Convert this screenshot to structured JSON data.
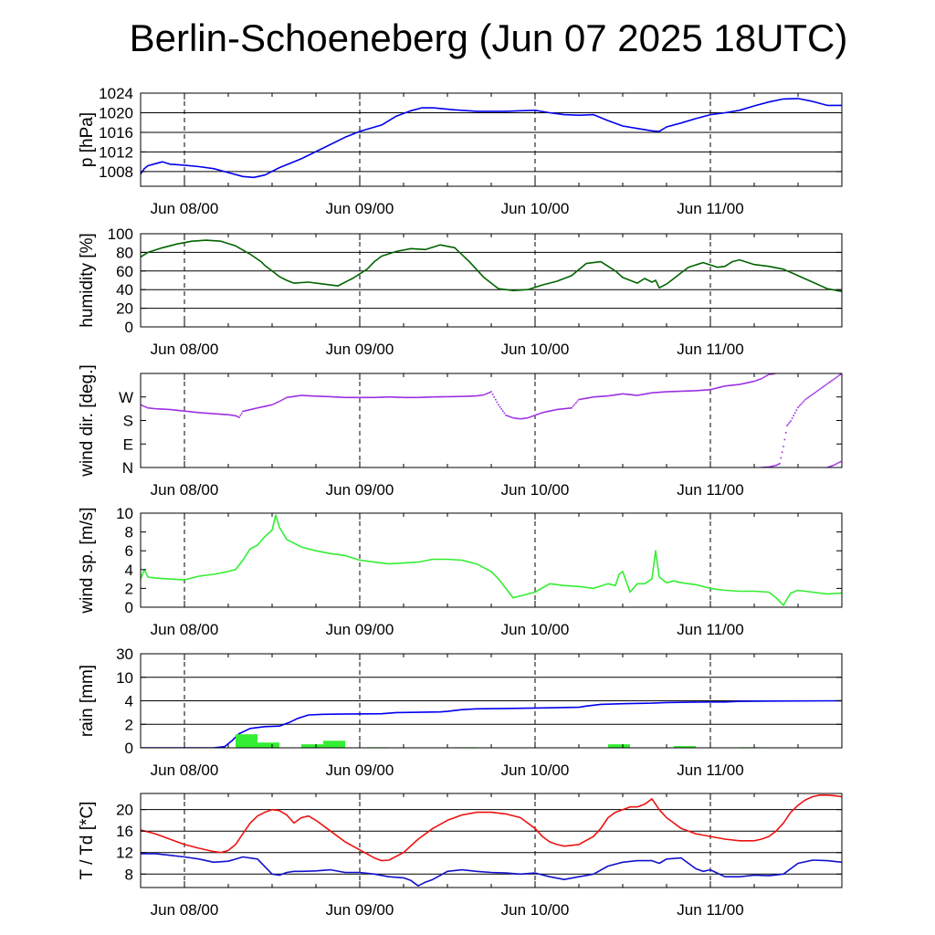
{
  "title": "Berlin-Schoeneberg (Jun 07 2025 18UTC)",
  "colors": {
    "pressure": "#0000ee",
    "humidity": "#006400",
    "wind_dir": "#9a2be2",
    "wind_speed": "#33ee33",
    "rain_total": "#0000ee",
    "rain_bars": "#33ee33",
    "temperature": "#ee1111",
    "dewpoint": "#1111cc"
  },
  "x_axis": {
    "unit": "hours since Jun 07 18UTC",
    "range": [
      0,
      96
    ],
    "tick_positions": [
      6,
      30,
      54,
      78
    ],
    "tick_labels": [
      "Jun 08/00",
      "Jun 09/00",
      "Jun 10/00",
      "Jun 11/00"
    ]
  },
  "chart_data": [
    {
      "type": "line",
      "ylabel": "p [hPa]",
      "ylim": [
        1005,
        1024
      ],
      "yticks": [
        1008,
        1012,
        1016,
        1020,
        1024
      ],
      "ytick_labels": [
        "1008",
        "1012",
        "1016",
        "1020",
        "1024"
      ],
      "grid": true,
      "series": [
        {
          "color_key": "pressure",
          "x": [
            0,
            0.5,
            1,
            2,
            3,
            4,
            6,
            8,
            10,
            12,
            14,
            15.5,
            17,
            19,
            22,
            25,
            28,
            30,
            33,
            35,
            37,
            38.5,
            40,
            43,
            46,
            50,
            52,
            54,
            56,
            58,
            60,
            62,
            64,
            66,
            68,
            70,
            71,
            72,
            74,
            76,
            78,
            80,
            82,
            84,
            86,
            88,
            90,
            92,
            94,
            96
          ],
          "y": [
            1007.5,
            1008.6,
            1009.2,
            1009.6,
            1010.0,
            1009.5,
            1009.3,
            1009.0,
            1008.6,
            1007.8,
            1007.0,
            1006.8,
            1007.3,
            1008.8,
            1010.6,
            1012.8,
            1015.0,
            1016.2,
            1017.5,
            1019.3,
            1020.4,
            1021.0,
            1021.0,
            1020.6,
            1020.3,
            1020.3,
            1020.4,
            1020.5,
            1020.0,
            1019.6,
            1019.5,
            1019.6,
            1018.4,
            1017.3,
            1016.8,
            1016.3,
            1016.2,
            1017.1,
            1017.9,
            1018.8,
            1019.6,
            1020.0,
            1020.5,
            1021.4,
            1022.2,
            1022.8,
            1022.9,
            1022.3,
            1021.5,
            1021.5
          ]
        }
      ]
    },
    {
      "type": "line",
      "ylabel": "humidity [%]",
      "ylim": [
        0,
        100
      ],
      "yticks": [
        0,
        20,
        40,
        60,
        80,
        100
      ],
      "ytick_labels": [
        "0",
        "20",
        "40",
        "60",
        "80",
        "100"
      ],
      "grid": true,
      "series": [
        {
          "color_key": "humidity",
          "x": [
            0,
            1,
            3,
            5,
            7,
            9,
            11,
            13,
            15,
            16.5,
            17,
            18,
            19,
            20,
            21,
            23,
            25,
            27,
            29,
            30,
            31,
            32,
            33,
            35,
            37,
            39,
            41,
            43,
            45,
            47,
            49,
            51,
            53,
            55,
            57,
            59,
            61,
            63,
            64,
            65,
            66,
            67,
            68,
            69,
            70,
            70.5,
            71,
            72,
            73,
            74,
            75,
            77,
            79,
            80,
            81,
            82,
            84,
            86,
            88,
            90,
            92,
            94,
            96
          ],
          "y": [
            75,
            80,
            85,
            89,
            92,
            93,
            92,
            87,
            78,
            70,
            66,
            60,
            54,
            50,
            47,
            48,
            46,
            44,
            52,
            57,
            62,
            70,
            76,
            81,
            84,
            83,
            88,
            85,
            70,
            53,
            41,
            39,
            40,
            45,
            49,
            55,
            68,
            70,
            65,
            60,
            53,
            50,
            47,
            52,
            48,
            50,
            42,
            46,
            52,
            58,
            64,
            69,
            64,
            65,
            70,
            72,
            67,
            65,
            62,
            55,
            48,
            41,
            38
          ]
        }
      ]
    },
    {
      "type": "scatter",
      "ylabel": "wind dir. [deg.]",
      "ylim": [
        0,
        360
      ],
      "yticks": [
        0,
        90,
        180,
        270
      ],
      "ytick_labels": [
        "N",
        "E",
        "S",
        "W"
      ],
      "grid": false,
      "series": [
        {
          "color_key": "wind_dir",
          "x": [
            0,
            1,
            2,
            4,
            6,
            8,
            10,
            12,
            13,
            13.5,
            14,
            16,
            18,
            19,
            20,
            22,
            24,
            26,
            28,
            30,
            32,
            34,
            36,
            38,
            40,
            42,
            44,
            46,
            47,
            48,
            49,
            50,
            51,
            52,
            53,
            54,
            55,
            57,
            59,
            60,
            62,
            64,
            66,
            68,
            70,
            72,
            74,
            76,
            78,
            80,
            82,
            84,
            85,
            86,
            87
          ],
          "y": [
            240,
            228,
            225,
            222,
            216,
            210,
            206,
            202,
            198,
            192,
            215,
            228,
            240,
            253,
            268,
            276,
            273,
            271,
            268,
            268,
            268,
            270,
            268,
            268,
            270,
            271,
            272,
            274,
            278,
            290,
            240,
            200,
            190,
            186,
            190,
            200,
            210,
            222,
            228,
            260,
            270,
            274,
            282,
            276,
            286,
            290,
            292,
            294,
            298,
            312,
            318,
            330,
            340,
            356,
            360
          ]
        },
        {
          "color_key": "wind_dir",
          "x": [
            85,
            86,
            87,
            87.5,
            88,
            88.5,
            89,
            90,
            91,
            92,
            93,
            94,
            95,
            96
          ],
          "y": [
            0,
            2,
            8,
            15,
            80,
            160,
            178,
            230,
            260,
            280,
            300,
            320,
            340,
            360
          ]
        },
        {
          "color_key": "wind_dir",
          "x": [
            94,
            95,
            96
          ],
          "y": [
            0,
            10,
            25
          ]
        }
      ]
    },
    {
      "type": "line",
      "ylabel": "wind sp. [m/s]",
      "ylim": [
        0,
        10
      ],
      "yticks": [
        0,
        2,
        4,
        6,
        8,
        10
      ],
      "ytick_labels": [
        "0",
        "2",
        "4",
        "6",
        "8",
        "10"
      ],
      "grid": false,
      "series": [
        {
          "color_key": "wind_speed",
          "x": [
            0,
            0.5,
            1,
            2,
            4,
            6,
            8,
            10,
            12,
            13,
            14,
            15,
            16,
            17,
            18,
            18.5,
            19,
            20,
            22,
            24,
            26,
            28,
            30,
            32,
            34,
            36,
            38,
            40,
            42,
            44,
            46,
            48,
            49,
            50,
            51,
            52,
            54,
            56,
            58,
            60,
            62,
            64,
            65,
            65.5,
            66,
            67,
            68,
            69,
            70,
            70.5,
            71,
            72,
            73,
            74,
            76,
            78,
            80,
            82,
            84,
            86,
            87,
            88,
            89,
            90,
            92,
            94,
            96
          ],
          "y": [
            3.0,
            4.0,
            3.2,
            3.1,
            3.0,
            2.9,
            3.3,
            3.5,
            3.8,
            4.0,
            5.0,
            6.2,
            6.6,
            7.5,
            8.2,
            9.8,
            8.5,
            7.2,
            6.4,
            6.0,
            5.7,
            5.5,
            5.0,
            4.8,
            4.6,
            4.7,
            4.8,
            5.1,
            5.1,
            5.0,
            4.6,
            3.8,
            3.0,
            2.0,
            1.0,
            1.2,
            1.6,
            2.5,
            2.3,
            2.2,
            2.0,
            2.5,
            2.3,
            3.5,
            3.8,
            1.6,
            2.5,
            2.5,
            3.0,
            6.0,
            3.2,
            2.6,
            2.8,
            2.6,
            2.4,
            2.0,
            1.8,
            1.7,
            1.7,
            1.6,
            1.0,
            0.2,
            1.5,
            1.8,
            1.6,
            1.4,
            1.5
          ]
        }
      ]
    },
    {
      "type": "bar",
      "ylabel": "rain [mm]",
      "scale": "piecewise",
      "yticks": [
        0,
        2,
        4,
        10,
        30
      ],
      "ytick_labels": [
        "0",
        "2",
        "4",
        "10",
        "30"
      ],
      "grid": true,
      "series": [
        {
          "name": "",
          "color_key": "rain_total",
          "kind": "line",
          "x": [
            0,
            8,
            10,
            11.5,
            12.5,
            13.5,
            15,
            17,
            19,
            20.5,
            21.5,
            23,
            25,
            29,
            33,
            35,
            41,
            42,
            44,
            46,
            50,
            56,
            60,
            61,
            63,
            66,
            70,
            72,
            78,
            80,
            82,
            86,
            96
          ],
          "y": [
            0,
            0,
            0,
            0.1,
            0.6,
            1.2,
            1.65,
            1.8,
            1.85,
            2.2,
            2.5,
            2.8,
            2.85,
            2.88,
            2.9,
            3.0,
            3.05,
            3.1,
            3.25,
            3.32,
            3.35,
            3.4,
            3.45,
            3.55,
            3.7,
            3.75,
            3.8,
            3.85,
            3.9,
            3.9,
            3.95,
            3.98,
            4.0
          ]
        },
        {
          "name": "",
          "color_key": "rain_bars",
          "kind": "bars",
          "x_start": [
            13,
            16,
            22,
            25,
            31,
            43,
            64,
            73,
            82
          ],
          "x_end": [
            16,
            19,
            25,
            28,
            34,
            46,
            67,
            76,
            85
          ],
          "values": [
            1.15,
            0.45,
            0.3,
            0.6,
            0.05,
            0.05,
            0.3,
            0.15,
            0.05
          ]
        }
      ]
    },
    {
      "type": "line",
      "ylabel": "T / Td [*C]",
      "ylim": [
        5.5,
        23
      ],
      "yticks": [
        8,
        12,
        16,
        20
      ],
      "ytick_labels": [
        "8",
        "12",
        "16",
        "20"
      ],
      "grid": true,
      "series": [
        {
          "color_key": "temperature",
          "x": [
            0,
            2,
            4,
            6,
            8,
            10,
            11,
            12,
            13,
            14,
            15,
            16,
            17,
            18,
            19,
            20,
            21,
            22,
            23,
            24,
            26,
            28,
            30,
            32,
            33,
            34,
            36,
            38,
            40,
            42,
            44,
            46,
            48,
            50,
            52,
            54,
            55,
            56,
            57,
            58,
            60,
            62,
            63,
            64,
            65,
            66,
            67,
            68,
            69,
            70,
            71,
            72,
            73,
            74,
            76,
            78,
            80,
            82,
            84,
            85,
            86,
            87,
            88,
            89,
            90,
            91,
            92,
            93,
            94,
            95,
            96
          ],
          "y": [
            16.2,
            15.5,
            14.5,
            13.5,
            12.8,
            12.2,
            12.0,
            12.4,
            13.5,
            15.5,
            17.5,
            18.8,
            19.5,
            20.0,
            19.8,
            19.0,
            17.5,
            18.5,
            18.8,
            18.0,
            16.0,
            14.0,
            12.5,
            11.0,
            10.5,
            10.6,
            12.0,
            14.5,
            16.5,
            18.0,
            19.0,
            19.5,
            19.5,
            19.2,
            18.5,
            16.5,
            15.0,
            14.0,
            13.5,
            13.2,
            13.5,
            15.0,
            16.5,
            18.5,
            19.5,
            20.0,
            20.5,
            20.5,
            21.0,
            22.0,
            20.0,
            18.5,
            17.5,
            16.5,
            15.5,
            15.0,
            14.5,
            14.2,
            14.2,
            14.5,
            15.0,
            16.0,
            17.5,
            19.5,
            20.8,
            21.8,
            22.4,
            22.7,
            22.7,
            22.6,
            22.4
          ]
        },
        {
          "color_key": "dewpoint",
          "x": [
            0,
            2,
            4,
            6,
            8,
            10,
            12,
            14,
            16,
            18,
            19,
            20,
            21,
            22,
            24,
            26,
            28,
            30,
            32,
            34,
            36,
            37,
            38,
            39,
            40,
            42,
            44,
            46,
            48,
            50,
            52,
            54,
            56,
            58,
            60,
            62,
            64,
            66,
            68,
            70,
            71,
            72,
            74,
            76,
            77,
            78,
            80,
            82,
            84,
            86,
            88,
            90,
            92,
            94,
            96
          ],
          "y": [
            11.8,
            11.8,
            11.5,
            11.2,
            10.8,
            10.2,
            10.4,
            11.2,
            10.8,
            8.0,
            7.8,
            8.3,
            8.5,
            8.5,
            8.6,
            8.8,
            8.3,
            8.3,
            8.0,
            7.5,
            7.3,
            6.8,
            5.8,
            6.5,
            7.0,
            8.5,
            8.8,
            8.5,
            8.3,
            8.2,
            8.0,
            8.2,
            7.5,
            7.0,
            7.5,
            8.0,
            9.5,
            10.2,
            10.5,
            10.5,
            10.0,
            10.8,
            11.0,
            9.0,
            8.5,
            8.8,
            7.5,
            7.5,
            7.8,
            7.7,
            8.0,
            10.0,
            10.6,
            10.5,
            10.2
          ]
        }
      ]
    }
  ]
}
